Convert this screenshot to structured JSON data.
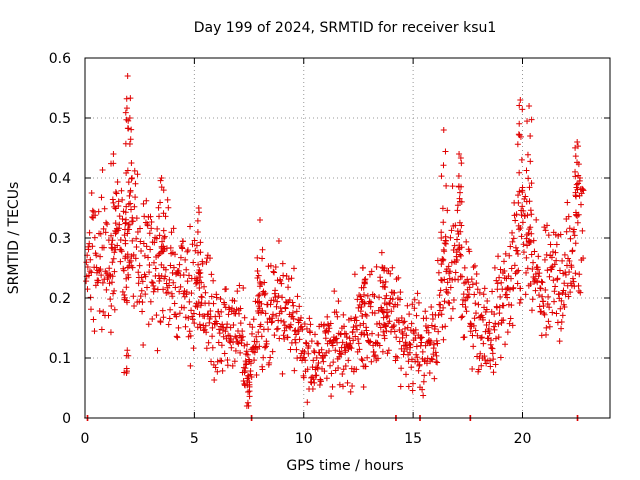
{
  "chart_data": {
    "type": "scatter",
    "title": "Day 199 of 2024, SRMTID for receiver ksu1",
    "xlabel": "GPS time / hours",
    "ylabel": "SRMTID / TECUs",
    "xlim": [
      0,
      24
    ],
    "ylim": [
      0,
      0.6
    ],
    "x_ticks": [
      0,
      5,
      10,
      15,
      20
    ],
    "y_ticks": [
      0,
      0.1,
      0.2,
      0.3,
      0.4,
      0.5,
      0.6
    ],
    "x_tick_labels": [
      "0",
      "5",
      "10",
      "15",
      "20"
    ],
    "y_tick_labels": [
      "0",
      "0.1",
      "0.2",
      "0.3",
      "0.4",
      "0.5",
      "0.6"
    ],
    "grid": true,
    "marker": "+",
    "color": "#e00000",
    "series": [
      {
        "name": "SRMTID",
        "trend": [
          [
            0.0,
            0.24
          ],
          [
            0.5,
            0.26
          ],
          [
            1.0,
            0.27
          ],
          [
            1.5,
            0.28
          ],
          [
            2.0,
            0.3
          ],
          [
            2.5,
            0.26
          ],
          [
            3.0,
            0.23
          ],
          [
            3.5,
            0.26
          ],
          [
            4.0,
            0.22
          ],
          [
            4.5,
            0.21
          ],
          [
            5.0,
            0.22
          ],
          [
            5.5,
            0.19
          ],
          [
            6.0,
            0.15
          ],
          [
            6.5,
            0.14
          ],
          [
            7.0,
            0.15
          ],
          [
            7.5,
            0.09
          ],
          [
            8.0,
            0.17
          ],
          [
            8.5,
            0.18
          ],
          [
            9.0,
            0.19
          ],
          [
            9.5,
            0.16
          ],
          [
            10.0,
            0.1
          ],
          [
            10.5,
            0.1
          ],
          [
            11.0,
            0.13
          ],
          [
            11.5,
            0.12
          ],
          [
            12.0,
            0.11
          ],
          [
            12.5,
            0.15
          ],
          [
            13.0,
            0.16
          ],
          [
            13.5,
            0.17
          ],
          [
            14.0,
            0.17
          ],
          [
            14.5,
            0.14
          ],
          [
            15.0,
            0.13
          ],
          [
            15.5,
            0.11
          ],
          [
            16.0,
            0.14
          ],
          [
            16.5,
            0.23
          ],
          [
            17.0,
            0.29
          ],
          [
            17.5,
            0.2
          ],
          [
            18.0,
            0.15
          ],
          [
            18.5,
            0.13
          ],
          [
            19.0,
            0.19
          ],
          [
            19.5,
            0.21
          ],
          [
            20.0,
            0.32
          ],
          [
            20.5,
            0.24
          ],
          [
            21.0,
            0.2
          ],
          [
            21.5,
            0.23
          ],
          [
            22.0,
            0.24
          ],
          [
            22.5,
            0.31
          ],
          [
            22.8,
            0.33
          ]
        ],
        "peaks": [
          [
            1.3,
            0.44
          ],
          [
            1.95,
            0.57
          ],
          [
            2.05,
            0.5
          ],
          [
            3.5,
            0.4
          ],
          [
            5.2,
            0.35
          ],
          [
            8.0,
            0.33
          ],
          [
            12.7,
            0.25
          ],
          [
            13.7,
            0.25
          ],
          [
            16.4,
            0.48
          ],
          [
            17.1,
            0.44
          ],
          [
            19.9,
            0.53
          ],
          [
            20.3,
            0.52
          ],
          [
            22.5,
            0.46
          ],
          [
            7.4,
            0.02
          ],
          [
            1.9,
            0.075
          ]
        ],
        "zeros": [
          0.1,
          7.6,
          14.2,
          15.3,
          17.6,
          22.5
        ]
      }
    ]
  }
}
